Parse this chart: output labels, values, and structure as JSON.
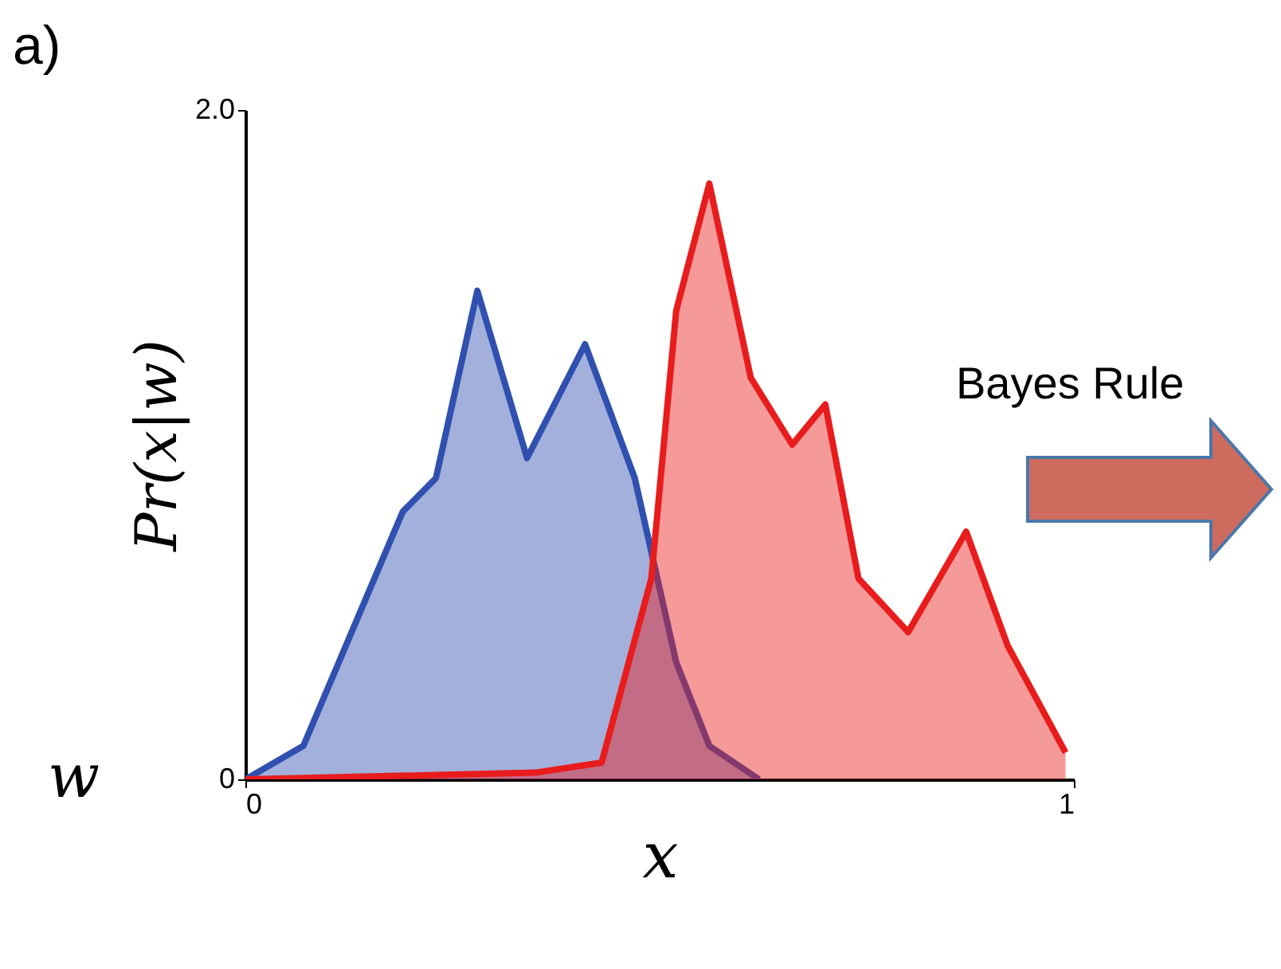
{
  "chart_data": {
    "type": "area",
    "xlabel": "x",
    "ylabel": "Pr(x|w)",
    "xlim": [
      0,
      1
    ],
    "xticks": [
      0,
      1
    ],
    "ylim": [
      0,
      2
    ],
    "yticks": [
      0,
      {
        "value": 2,
        "label": "2.0"
      }
    ],
    "grid": false,
    "annotations": [
      "a)",
      "Bayes Rule",
      "w"
    ],
    "series": [
      {
        "color": "#3050b0",
        "x": [
          0,
          0.07,
          0.13,
          0.19,
          0.23,
          0.28,
          0.34,
          0.41,
          0.47,
          0.52,
          0.56,
          0.62
        ],
        "values": [
          0,
          0.1,
          0.45,
          0.8,
          0.9,
          1.46,
          0.96,
          1.3,
          0.9,
          0.35,
          0.1,
          0
        ]
      },
      {
        "color": "#e81c1c",
        "x": [
          0,
          0.35,
          0.43,
          0.49,
          0.52,
          0.56,
          0.61,
          0.66,
          0.7,
          0.74,
          0.8,
          0.87,
          0.92,
          0.99
        ],
        "values": [
          0,
          0.02,
          0.05,
          0.6,
          1.4,
          1.78,
          1.2,
          1.0,
          1.12,
          0.6,
          0.44,
          0.74,
          0.4,
          0.08
        ]
      }
    ]
  }
}
